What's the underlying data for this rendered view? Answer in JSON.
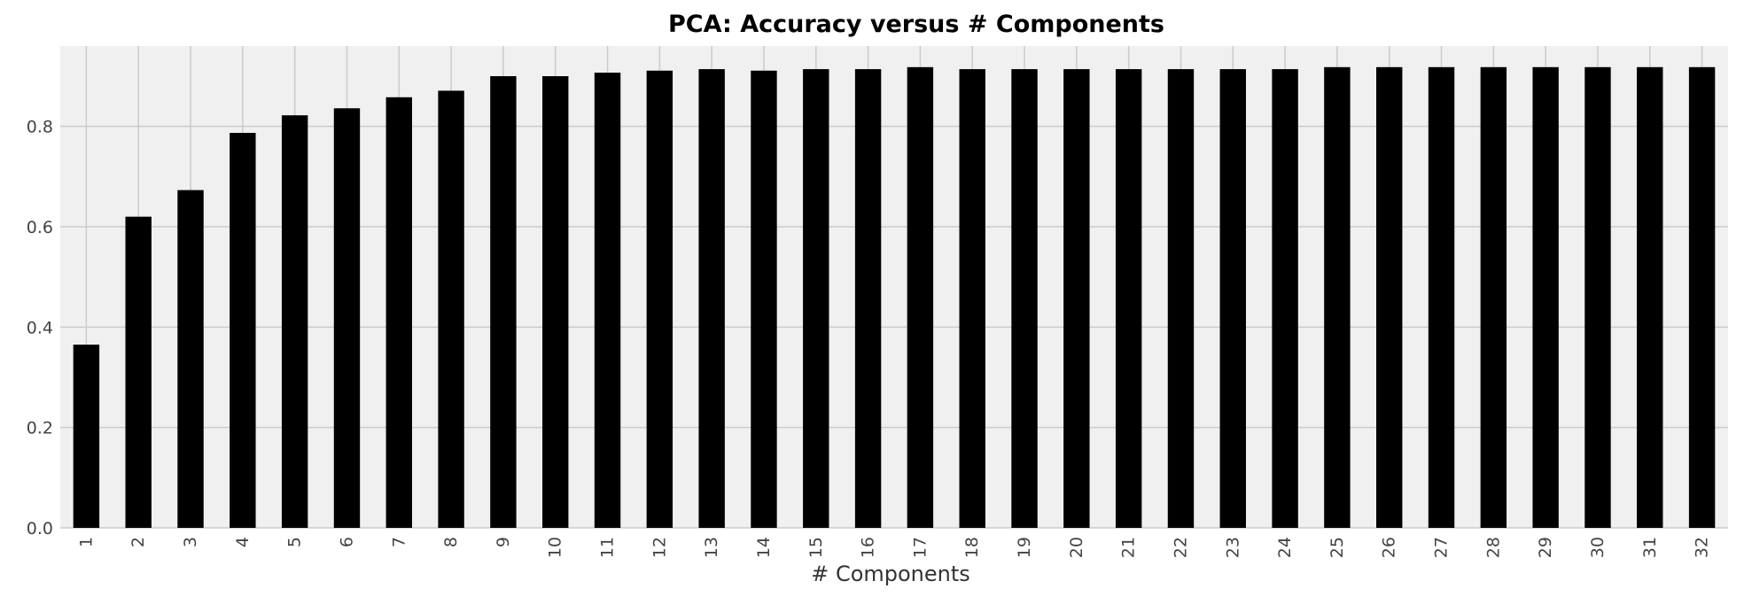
{
  "chart_data": {
    "type": "bar",
    "title": "PCA: Accuracy versus # Components",
    "xlabel": "# Components",
    "ylabel": "",
    "categories": [
      "1",
      "2",
      "3",
      "4",
      "5",
      "6",
      "7",
      "8",
      "9",
      "10",
      "11",
      "12",
      "13",
      "14",
      "15",
      "16",
      "17",
      "18",
      "19",
      "20",
      "21",
      "22",
      "23",
      "24",
      "25",
      "26",
      "27",
      "28",
      "29",
      "30",
      "31",
      "32"
    ],
    "values": [
      0.365,
      0.62,
      0.673,
      0.787,
      0.822,
      0.836,
      0.858,
      0.871,
      0.9,
      0.9,
      0.907,
      0.911,
      0.914,
      0.911,
      0.914,
      0.914,
      0.918,
      0.914,
      0.914,
      0.914,
      0.914,
      0.914,
      0.914,
      0.914,
      0.918,
      0.918,
      0.918,
      0.918,
      0.918,
      0.918,
      0.918,
      0.918
    ],
    "ylim": [
      0,
      0.96
    ],
    "yticks": [
      0.0,
      0.2,
      0.4,
      0.6,
      0.8
    ],
    "ytick_labels": [
      "0.0",
      "0.2",
      "0.4",
      "0.6",
      "0.8"
    ],
    "grid": true,
    "legend": "none",
    "colors": {
      "bar": "#000000",
      "plot_background": "#f0f0f0",
      "grid": "#cbcbcb"
    }
  }
}
